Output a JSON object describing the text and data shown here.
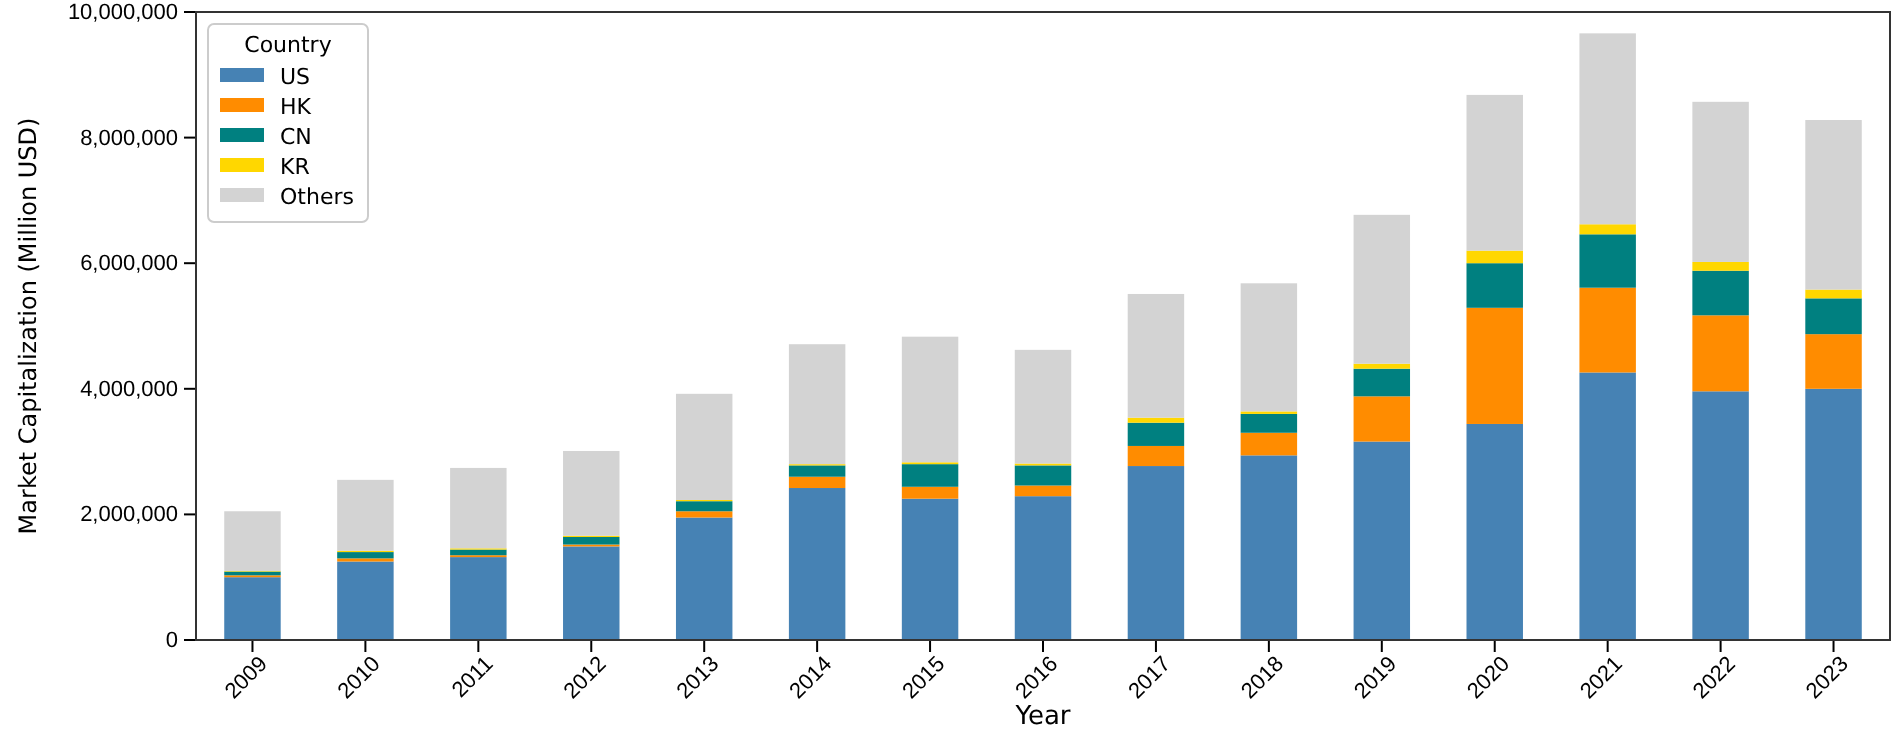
{
  "chart_data": {
    "type": "bar",
    "stacked": true,
    "xlabel": "Year",
    "ylabel": "Market Capitalization (Million USD)",
    "legend_title": "Country",
    "legend": "top left",
    "grid": false,
    "categories": [
      "2009",
      "2010",
      "2011",
      "2012",
      "2013",
      "2014",
      "2015",
      "2016",
      "2017",
      "2018",
      "2019",
      "2020",
      "2021",
      "2022",
      "2023"
    ],
    "ylim": [
      0,
      10000000
    ],
    "yticks": [
      {
        "value": 0,
        "label": "0"
      },
      {
        "value": 2000000,
        "label": "2,000,000"
      },
      {
        "value": 4000000,
        "label": "4,000,000"
      },
      {
        "value": 6000000,
        "label": "6,000,000"
      },
      {
        "value": 8000000,
        "label": "8,000,000"
      },
      {
        "value": 10000000,
        "label": "10,000,000"
      }
    ],
    "series": [
      {
        "name": "US",
        "color": "#4682b4",
        "values": [
          1000000,
          1250000,
          1320000,
          1490000,
          1950000,
          2420000,
          2250000,
          2290000,
          2770000,
          2940000,
          3160000,
          3440000,
          4260000,
          3960000,
          4000000
        ]
      },
      {
        "name": "HK",
        "color": "#ff8c00",
        "values": [
          30000,
          50000,
          30000,
          30000,
          100000,
          180000,
          190000,
          170000,
          320000,
          360000,
          720000,
          1850000,
          1350000,
          1210000,
          870000
        ]
      },
      {
        "name": "CN",
        "color": "#008080",
        "values": [
          60000,
          100000,
          90000,
          120000,
          160000,
          180000,
          360000,
          320000,
          370000,
          300000,
          440000,
          710000,
          850000,
          710000,
          570000
        ]
      },
      {
        "name": "KR",
        "color": "#ffd700",
        "values": [
          10000,
          20000,
          20000,
          20000,
          20000,
          20000,
          30000,
          30000,
          80000,
          40000,
          80000,
          200000,
          160000,
          140000,
          140000
        ]
      },
      {
        "name": "Others",
        "color": "#d3d3d3",
        "values": [
          950000,
          1130000,
          1280000,
          1350000,
          1690000,
          1910000,
          2000000,
          1810000,
          1970000,
          2040000,
          2370000,
          2480000,
          3040000,
          2550000,
          2700000
        ]
      }
    ]
  }
}
